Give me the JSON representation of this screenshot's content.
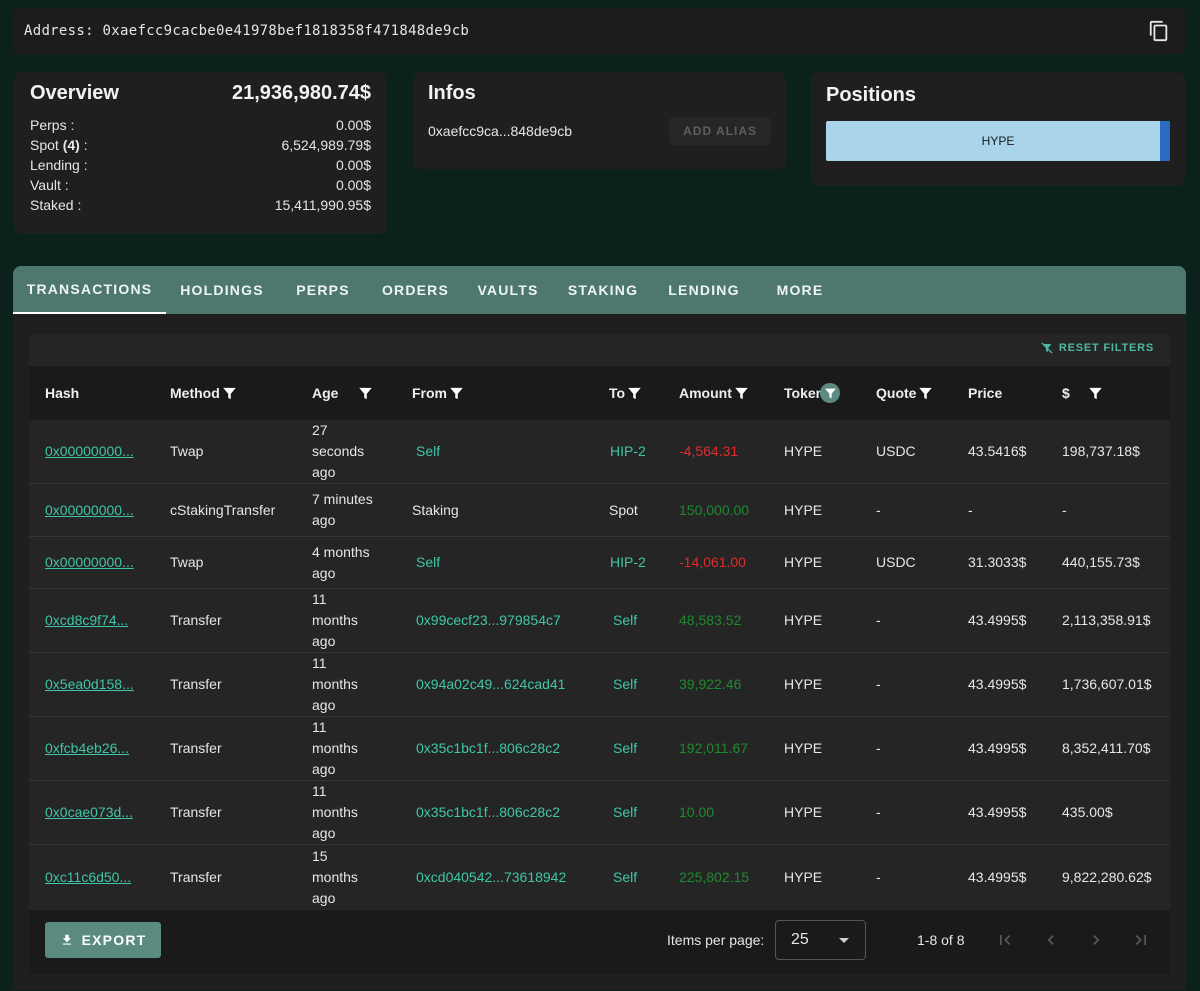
{
  "address": {
    "text": "Address: 0xaefcc9cacbe0e41978bef1818358f471848de9cb",
    "copy_icon": "copy-icon"
  },
  "overview": {
    "title": "Overview",
    "total": "21,936,980.74$",
    "rows": [
      {
        "label": "Perps :",
        "value": "0.00$"
      },
      {
        "label": "Spot",
        "count": "(4)",
        "suffix": " :",
        "value": "6,524,989.79$"
      },
      {
        "label": "Lending :",
        "value": "0.00$"
      },
      {
        "label": "Vault :",
        "value": "0.00$"
      },
      {
        "label": "Staked :",
        "value": "15,411,990.95$"
      }
    ]
  },
  "infos": {
    "title": "Infos",
    "address": "0xaefcc9ca...848de9cb",
    "alias_button": "ADD ALIAS"
  },
  "positions": {
    "title": "Positions",
    "bar_label": "HYPE",
    "colors": {
      "main": "#a9d4ec",
      "edge": "#2a6cc0"
    }
  },
  "tabs": [
    "TRANSACTIONS",
    "HOLDINGS",
    "PERPS",
    "ORDERS",
    "VAULTS",
    "STAKING",
    "LENDING",
    "MORE"
  ],
  "active_tab": "TRANSACTIONS",
  "reset_filters": "RESET FILTERS",
  "columns": [
    "Hash",
    "Method",
    "Age",
    "From",
    "To",
    "Amount",
    "Token",
    "Quote",
    "Price",
    "$"
  ],
  "rows": [
    {
      "hash": "0x00000000...",
      "method": "Twap",
      "age": "27 seconds ago",
      "from": "Self",
      "to": "HIP-2",
      "amount": "-4,564.31",
      "token": "HYPE",
      "quote": "USDC",
      "price": "43.5416$",
      "usd": "198,737.18$"
    },
    {
      "hash": "0x00000000...",
      "method": "cStakingTransfer",
      "age": "7 minutes ago",
      "from": "Staking",
      "to": "Spot",
      "amount": "150,000.00",
      "token": "HYPE",
      "quote": "-",
      "price": "-",
      "usd": "-"
    },
    {
      "hash": "0x00000000...",
      "method": "Twap",
      "age": "4 months ago",
      "from": "Self",
      "to": "HIP-2",
      "amount": "-14,061.00",
      "token": "HYPE",
      "quote": "USDC",
      "price": "31.3033$",
      "usd": "440,155.73$"
    },
    {
      "hash": "0xcd8c9f74...",
      "method": "Transfer",
      "age": "11 months ago",
      "from": "0x99cecf23...979854c7",
      "to": "Self",
      "amount": "48,583.52",
      "token": "HYPE",
      "quote": "-",
      "price": "43.4995$",
      "usd": "2,113,358.91$"
    },
    {
      "hash": "0x5ea0d158...",
      "method": "Transfer",
      "age": "11 months ago",
      "from": "0x94a02c49...624cad41",
      "to": "Self",
      "amount": "39,922.46",
      "token": "HYPE",
      "quote": "-",
      "price": "43.4995$",
      "usd": "1,736,607.01$"
    },
    {
      "hash": "0xfcb4eb26...",
      "method": "Transfer",
      "age": "11 months ago",
      "from": "0x35c1bc1f...806c28c2",
      "to": "Self",
      "amount": "192,011.67",
      "token": "HYPE",
      "quote": "-",
      "price": "43.4995$",
      "usd": "8,352,411.70$"
    },
    {
      "hash": "0x0cae073d...",
      "method": "Transfer",
      "age": "11 months ago",
      "from": "0x35c1bc1f...806c28c2",
      "to": "Self",
      "amount": "10.00",
      "token": "HYPE",
      "quote": "-",
      "price": "43.4995$",
      "usd": "435.00$"
    },
    {
      "hash": "0xc11c6d50...",
      "method": "Transfer",
      "age": "15 months ago",
      "from": "0xcd040542...73618942",
      "to": "Self",
      "amount": "225,802.15",
      "token": "HYPE",
      "quote": "-",
      "price": "43.4995$",
      "usd": "9,822,280.62$"
    }
  ],
  "footer": {
    "export": "EXPORT",
    "items_per_page_label": "Items per page:",
    "items_per_page": "25",
    "range": "1-8 of 8"
  },
  "colors": {
    "accent": "#3fc6a6",
    "negative": "#e12c2c",
    "positive": "#1e8a2e",
    "tab_bar": "#4e776e"
  }
}
